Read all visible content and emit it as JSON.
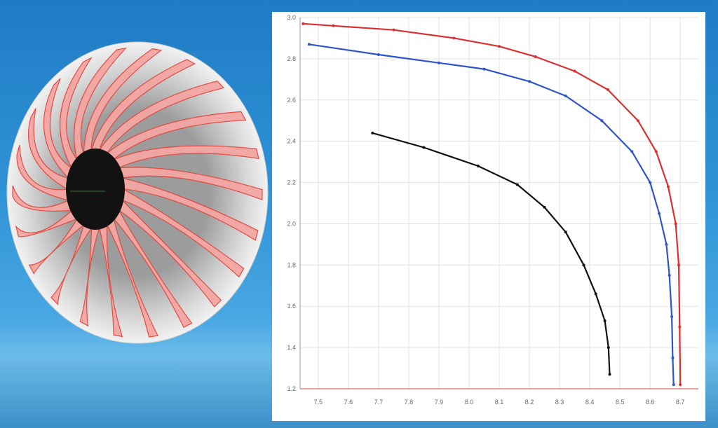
{
  "impeller": {
    "blade_color": "#f4a6a2",
    "blade_edge_color": "#e0463c",
    "hub_color": "#121212",
    "rim_color": "#cfcfcf"
  },
  "chart_data": {
    "type": "line",
    "title": "",
    "xlabel": "",
    "ylabel": "",
    "xlim": [
      7.44,
      8.76
    ],
    "ylim": [
      1.2,
      3.0
    ],
    "x_ticks": [
      "7.5",
      "7.6",
      "7.7",
      "7.8",
      "7.9",
      "8.0",
      "8.1",
      "8.2",
      "8.3",
      "8.4",
      "8.5",
      "8.6",
      "8.7"
    ],
    "y_ticks": [
      "1.2",
      "1.4",
      "1.6",
      "1.8",
      "2.0",
      "2.2",
      "2.4",
      "2.6",
      "2.8",
      "3.0"
    ],
    "grid": true,
    "series": [
      {
        "color": "#d93030",
        "x": [
          7.45,
          7.55,
          7.75,
          7.95,
          8.1,
          8.22,
          8.35,
          8.46,
          8.56,
          8.62,
          8.66,
          8.685,
          8.695,
          8.698,
          8.7
        ],
        "y": [
          2.97,
          2.96,
          2.94,
          2.9,
          2.86,
          2.81,
          2.74,
          2.65,
          2.5,
          2.35,
          2.18,
          2.0,
          1.8,
          1.5,
          1.22
        ]
      },
      {
        "color": "#2f55c8",
        "x": [
          7.47,
          7.7,
          7.9,
          8.05,
          8.2,
          8.32,
          8.44,
          8.54,
          8.6,
          8.63,
          8.654,
          8.664,
          8.672,
          8.675,
          8.678
        ],
        "y": [
          2.87,
          2.82,
          2.78,
          2.75,
          2.69,
          2.62,
          2.5,
          2.35,
          2.2,
          2.05,
          1.9,
          1.75,
          1.55,
          1.35,
          1.22
        ]
      },
      {
        "color": "#111111",
        "x": [
          7.68,
          7.85,
          8.03,
          8.16,
          8.25,
          8.32,
          8.38,
          8.42,
          8.45,
          8.462,
          8.466
        ],
        "y": [
          2.44,
          2.37,
          2.28,
          2.19,
          2.08,
          1.96,
          1.8,
          1.66,
          1.53,
          1.4,
          1.27
        ]
      }
    ]
  }
}
